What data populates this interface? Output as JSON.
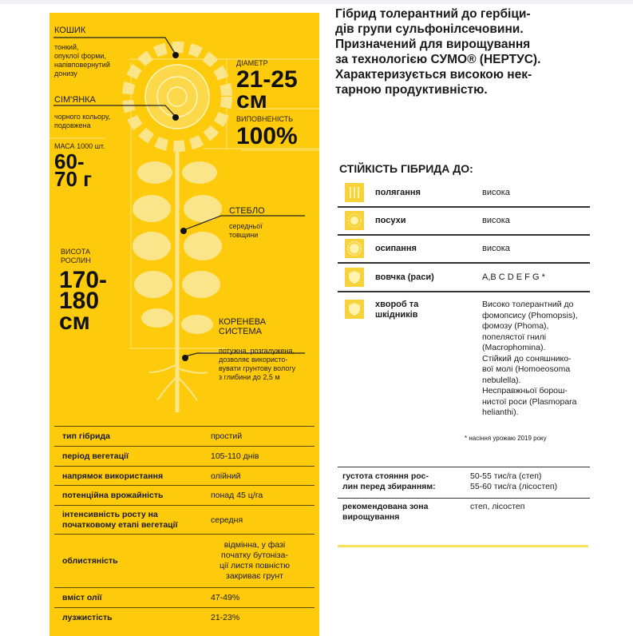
{
  "panel": {
    "head": {
      "title": "КОШИК",
      "desc": "тонкий,\nопуклої форми,\nнапівповернутий\nдонизу"
    },
    "seed": {
      "title": "СІМ'ЯНКА",
      "desc": "чорного кольору,\nподовжена"
    },
    "mass": {
      "label": "МАСА 1000 шт.",
      "value": "60-\n70 г"
    },
    "diameter": {
      "label": "ДІАМЕТР",
      "value": "21-25\nсм"
    },
    "fill": {
      "label": "ВИПОВНЕНІСТЬ",
      "value": "100%"
    },
    "stem": {
      "title": "СТЕБЛО",
      "desc": "середньої\nтовщини"
    },
    "height": {
      "label": "ВИСОТА\nРОСЛИН",
      "value": "170-\n180\nсм"
    },
    "root": {
      "title": "КОРЕНЕВА\nСИСТЕМА",
      "desc": "потужна, розгалужена,\nдозволяє використо-\nвувати грунтову вологу\nз глибини до 2,5 м"
    },
    "rows": [
      {
        "k": "тип гібрида",
        "v": "простий"
      },
      {
        "k": "період вегетації",
        "v": "105-110 днів"
      },
      {
        "k": "напрямок використання",
        "v": "олійний"
      },
      {
        "k": "потенційна врожайність",
        "v": "понад 45 ц/га"
      },
      {
        "k": "інтенсивність росту на\nпочатковому етапі вегетації",
        "v": "середня"
      },
      {
        "k": "облистяність",
        "v": "відмінна, у фазі\nпочатку бутонізa-\nції листя повністю\nзакриває грунт"
      },
      {
        "k": "вміст олії",
        "v": "47-49%"
      },
      {
        "k": "лузжистість",
        "v": "21-23%"
      }
    ]
  },
  "right": {
    "lead": "Гібрид толерантний до гербіци-\nдів групи сульфонілсечовини.\nПризначений для вирощування\nза технологією СУМО® (НЕРТУС).\nХарактеризується високою нек-\nтарною продуктивністю.",
    "title": "СТІЙКІСТЬ ГІБРИДА ДО:",
    "resist": [
      {
        "icon": "wheat-icon",
        "k": "полягання",
        "v": "висока"
      },
      {
        "icon": "sun-icon",
        "k": "посухи",
        "v": "висока"
      },
      {
        "icon": "sun-burst-icon",
        "k": "осипання",
        "v": "висока"
      },
      {
        "icon": "shield-icon",
        "k": "вовчка (раси)",
        "v": "A,B C D E F G *"
      },
      {
        "icon": "shield-icon",
        "k": "хвороб та\nшкідників",
        "v": "Високо толерантний до\nфомопсису (Phomopsis),\nфомозу (Phoma),\nпопелястої гнилі\n(Macrophomina).\nСтійкий до соняшнико-\nвої молі (Homoeosoma\nnebulella).\nНесправжньої борош-\nнистої роси (Plasmopara\nhelianthi)."
      }
    ],
    "footnote": "* насіння урожаю 2019 року",
    "density": {
      "k": "густота стояння рос-\nлин перед збиранням:",
      "v": "50-55 тис/га (степ)\n55-60 тис/га (лісостеп)"
    },
    "zone": {
      "k": "рекомендована зона\nвирощування",
      "v": "степ, лісостеп"
    }
  },
  "colors": {
    "yellow": "#fdcb0b",
    "light": "#fbe78a"
  }
}
